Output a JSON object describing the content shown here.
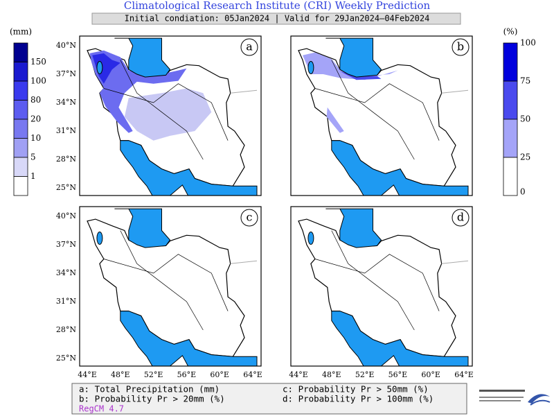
{
  "header": {
    "title": "Climatological Research Institute (CRI) Weekly Prediction",
    "subtitle": "Initial condiation: 05Jan2024 | Valid for 29Jan2024–04Feb2024"
  },
  "legend_left": {
    "unit": "(mm)",
    "labels": [
      "150",
      "100",
      "80",
      "20",
      "10",
      "5",
      "1"
    ],
    "colors": [
      "#000090",
      "#1a1ad0",
      "#3a3aee",
      "#5c5cf0",
      "#7878f0",
      "#a0a0f4",
      "#d8d8f8",
      "#ffffff"
    ]
  },
  "legend_right": {
    "unit": "(%)",
    "labels": [
      "100",
      "75",
      "50",
      "25",
      "0"
    ],
    "colors": [
      "#0000dd",
      "#4a4aee",
      "#a4a4f8",
      "#ffffff"
    ]
  },
  "panels": [
    {
      "label": "a"
    },
    {
      "label": "b"
    },
    {
      "label": "c"
    },
    {
      "label": "d"
    }
  ],
  "lat_labels": [
    "40°N",
    "37°N",
    "34°N",
    "31°N",
    "28°N",
    "25°N"
  ],
  "lon_labels": [
    "44°E",
    "48°E",
    "52°E",
    "56°E",
    "60°E",
    "64°E"
  ],
  "footer": {
    "lines": [
      "a: Total Precipitation (mm)",
      "c: Probability Pr > 50mm (%)",
      "b: Probability Pr > 20mm (%)",
      "d: Probability Pr > 100mm (%)"
    ],
    "model": "RegCM 4.7"
  }
}
